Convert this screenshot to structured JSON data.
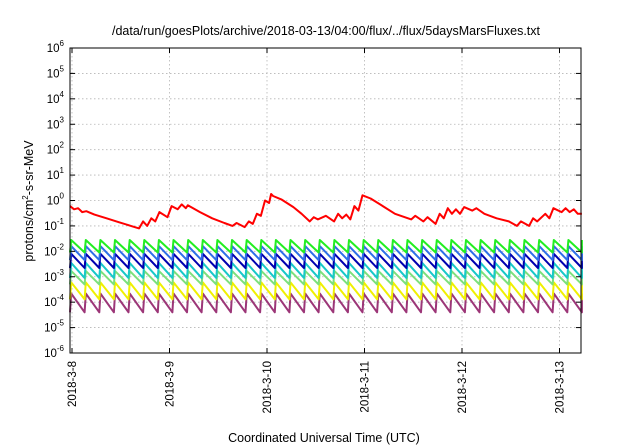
{
  "chart_data": {
    "type": "line",
    "title": "/data/run/goesPlots/archive/2018-03-13/04:00/flux/../flux/5daysMarsFluxes.txt",
    "xlabel": "Coordinated Universal Time (UTC)",
    "ylabel": {
      "prefix": "protons/cm",
      "superscript": "2",
      "suffix": "-s-sr-MeV"
    },
    "y_scale": "log",
    "ylim": [
      1e-06,
      1000000.0
    ],
    "yticks": [
      {
        "base": "10",
        "exp": "-6"
      },
      {
        "base": "10",
        "exp": "-5"
      },
      {
        "base": "10",
        "exp": "-4"
      },
      {
        "base": "10",
        "exp": "-3"
      },
      {
        "base": "10",
        "exp": "-2"
      },
      {
        "base": "10",
        "exp": "-1"
      },
      {
        "base": "10",
        "exp": "0"
      },
      {
        "base": "10",
        "exp": "1"
      },
      {
        "base": "10",
        "exp": "2"
      },
      {
        "base": "10",
        "exp": "3"
      },
      {
        "base": "10",
        "exp": "4"
      },
      {
        "base": "10",
        "exp": "5"
      },
      {
        "base": "10",
        "exp": "6"
      }
    ],
    "x_ticks": [
      "2018-3-8",
      "2018-3-9",
      "2018-3-10",
      "2018-3-11",
      "2018-3-12",
      "2018-3-13"
    ],
    "x_range": [
      "2018-03-08T00:00",
      "2018-03-13T06:00"
    ],
    "grid": true,
    "legend": "none",
    "series": [
      {
        "color": "#ff0000",
        "points": [
          [
            "2018-03-08T00:00",
            0.6
          ],
          [
            "2018-03-08T01:00",
            0.45
          ],
          [
            "2018-03-08T02:00",
            0.5
          ],
          [
            "2018-03-08T03:00",
            0.35
          ],
          [
            "2018-03-08T04:00",
            0.38
          ],
          [
            "2018-03-08T06:00",
            0.28
          ],
          [
            "2018-03-08T09:00",
            0.2
          ],
          [
            "2018-03-08T12:00",
            0.14
          ],
          [
            "2018-03-08T15:00",
            0.1
          ],
          [
            "2018-03-08T17:00",
            0.08
          ],
          [
            "2018-03-08T18:00",
            0.15
          ],
          [
            "2018-03-08T19:00",
            0.1
          ],
          [
            "2018-03-08T20:00",
            0.2
          ],
          [
            "2018-03-08T21:00",
            0.15
          ],
          [
            "2018-03-08T22:00",
            0.35
          ],
          [
            "2018-03-09T00:00",
            0.22
          ],
          [
            "2018-03-09T01:00",
            0.6
          ],
          [
            "2018-03-09T02:30",
            0.45
          ],
          [
            "2018-03-09T03:30",
            0.7
          ],
          [
            "2018-03-09T04:30",
            0.5
          ],
          [
            "2018-03-09T05:00",
            0.65
          ],
          [
            "2018-03-09T08:00",
            0.35
          ],
          [
            "2018-03-09T11:00",
            0.2
          ],
          [
            "2018-03-09T14:00",
            0.13
          ],
          [
            "2018-03-09T16:00",
            0.1
          ],
          [
            "2018-03-09T17:00",
            0.13
          ],
          [
            "2018-03-09T19:00",
            0.09
          ],
          [
            "2018-03-09T20:00",
            0.15
          ],
          [
            "2018-03-09T21:00",
            0.12
          ],
          [
            "2018-03-09T22:00",
            0.3
          ],
          [
            "2018-03-09T23:00",
            0.25
          ],
          [
            "2018-03-10T00:00",
            1.0
          ],
          [
            "2018-03-10T01:00",
            0.8
          ],
          [
            "2018-03-10T01:30",
            1.8
          ],
          [
            "2018-03-10T02:00",
            1.5
          ],
          [
            "2018-03-10T04:00",
            1.1
          ],
          [
            "2018-03-10T07:00",
            0.55
          ],
          [
            "2018-03-10T09:00",
            0.3
          ],
          [
            "2018-03-10T11:00",
            0.15
          ],
          [
            "2018-03-10T12:00",
            0.22
          ],
          [
            "2018-03-10T13:00",
            0.18
          ],
          [
            "2018-03-10T15:00",
            0.25
          ],
          [
            "2018-03-10T17:00",
            0.15
          ],
          [
            "2018-03-10T18:00",
            0.3
          ],
          [
            "2018-03-10T19:00",
            0.2
          ],
          [
            "2018-03-10T20:00",
            0.28
          ],
          [
            "2018-03-10T21:00",
            0.18
          ],
          [
            "2018-03-10T22:00",
            0.6
          ],
          [
            "2018-03-10T23:00",
            0.4
          ],
          [
            "2018-03-11T00:00",
            1.6
          ],
          [
            "2018-03-11T02:00",
            1.2
          ],
          [
            "2018-03-11T05:00",
            0.6
          ],
          [
            "2018-03-11T08:00",
            0.3
          ],
          [
            "2018-03-11T12:00",
            0.18
          ],
          [
            "2018-03-11T13:00",
            0.25
          ],
          [
            "2018-03-11T15:00",
            0.15
          ],
          [
            "2018-03-11T16:00",
            0.22
          ],
          [
            "2018-03-11T18:00",
            0.12
          ],
          [
            "2018-03-11T19:00",
            0.3
          ],
          [
            "2018-03-11T20:00",
            0.2
          ],
          [
            "2018-03-11T21:00",
            0.5
          ],
          [
            "2018-03-11T22:00",
            0.3
          ],
          [
            "2018-03-11T23:00",
            0.45
          ],
          [
            "2018-03-12T00:00",
            0.3
          ],
          [
            "2018-03-12T01:00",
            0.55
          ],
          [
            "2018-03-12T03:00",
            0.4
          ],
          [
            "2018-03-12T04:00",
            0.5
          ],
          [
            "2018-03-12T06:00",
            0.3
          ],
          [
            "2018-03-12T09:00",
            0.2
          ],
          [
            "2018-03-12T12:00",
            0.15
          ],
          [
            "2018-03-12T14:00",
            0.1
          ],
          [
            "2018-03-12T15:00",
            0.15
          ],
          [
            "2018-03-12T17:00",
            0.1
          ],
          [
            "2018-03-12T18:00",
            0.2
          ],
          [
            "2018-03-12T19:00",
            0.15
          ],
          [
            "2018-03-12T21:00",
            0.3
          ],
          [
            "2018-03-12T22:00",
            0.2
          ],
          [
            "2018-03-12T23:00",
            0.5
          ],
          [
            "2018-03-13T01:00",
            0.35
          ],
          [
            "2018-03-13T02:00",
            0.5
          ],
          [
            "2018-03-13T03:00",
            0.35
          ],
          [
            "2018-03-13T04:00",
            0.45
          ],
          [
            "2018-03-13T05:00",
            0.3
          ],
          [
            "2018-03-13T06:00",
            0.3
          ]
        ]
      },
      {
        "color": "#22ee22",
        "waveform": "sawtooth",
        "period_hours": 3.6,
        "peak": 0.028,
        "trough": 0.009
      },
      {
        "color": "#2e6fe8",
        "waveform": "sawtooth",
        "period_hours": 3.6,
        "peak": 0.016,
        "trough": 0.0045
      },
      {
        "color": "#0000b0",
        "waveform": "sawtooth",
        "period_hours": 3.6,
        "peak": 0.008,
        "trough": 0.0022
      },
      {
        "color": "#18c8c8",
        "waveform": "sawtooth",
        "period_hours": 3.6,
        "peak": 0.0035,
        "trough": 0.0009
      },
      {
        "color": "#7ce07c",
        "waveform": "sawtooth",
        "period_hours": 3.6,
        "peak": 0.0017,
        "trough": 0.0005
      },
      {
        "color": "#f0f000",
        "waveform": "sawtooth",
        "period_hours": 3.6,
        "peak": 0.0006,
        "trough": 0.00013
      },
      {
        "color": "#9c3678",
        "waveform": "sawtooth",
        "period_hours": 3.6,
        "peak": 0.00022,
        "trough": 4e-05
      }
    ]
  }
}
